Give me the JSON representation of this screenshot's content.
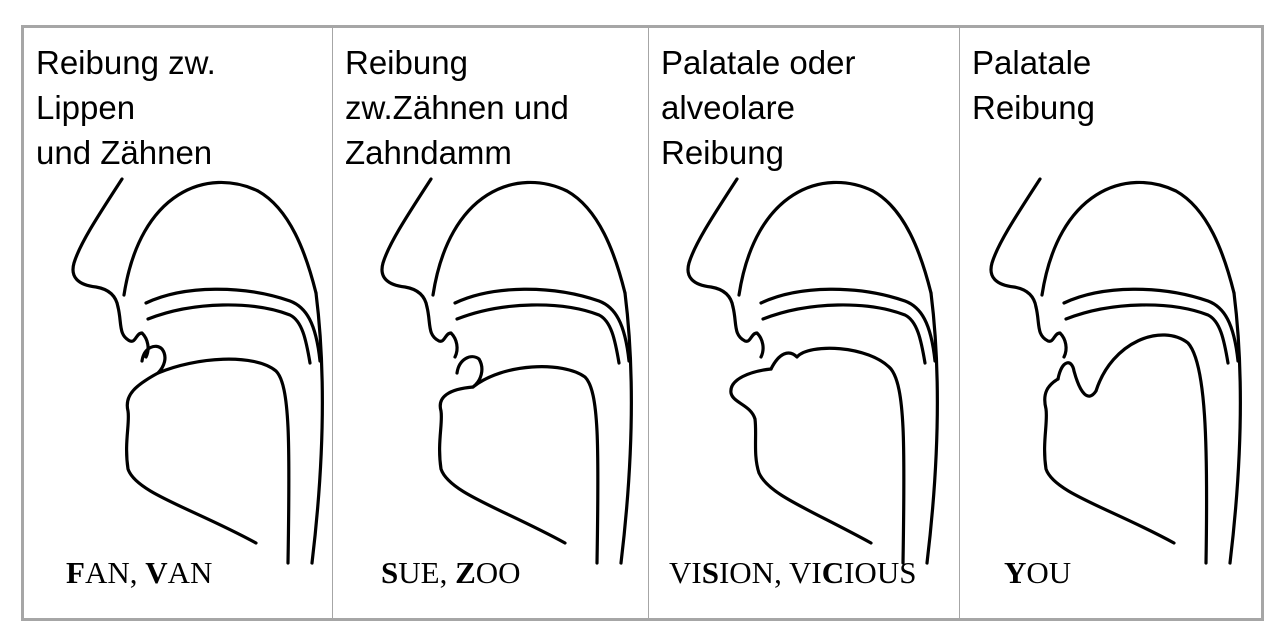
{
  "colors": {
    "border": "#a6a6a6",
    "ink": "#000000"
  },
  "panels": [
    {
      "heading": "Reibung zw.\nLippen\nund Zähnen",
      "example": [
        {
          "t": "F",
          "b": true
        },
        {
          "t": "AN, ",
          "b": false
        },
        {
          "t": "V",
          "b": true
        },
        {
          "t": "AN",
          "b": false
        }
      ]
    },
    {
      "heading": "Reibung\nzw.Zähnen und\nZahndamm",
      "example": [
        {
          "t": "S",
          "b": true
        },
        {
          "t": "UE, ",
          "b": false
        },
        {
          "t": "Z",
          "b": true
        },
        {
          "t": "OO",
          "b": false
        }
      ]
    },
    {
      "heading": "Palatale oder\nalveolare\nReibung",
      "example": [
        {
          "t": "VI",
          "b": false
        },
        {
          "t": "S",
          "b": true
        },
        {
          "t": "ION, VI",
          "b": false
        },
        {
          "t": "C",
          "b": true
        },
        {
          "t": "IOUS",
          "b": false
        }
      ]
    },
    {
      "heading": "Palatale\nReibung",
      "example": [
        {
          "t": "Y",
          "b": true
        },
        {
          "t": "OU",
          "b": false
        }
      ]
    }
  ]
}
